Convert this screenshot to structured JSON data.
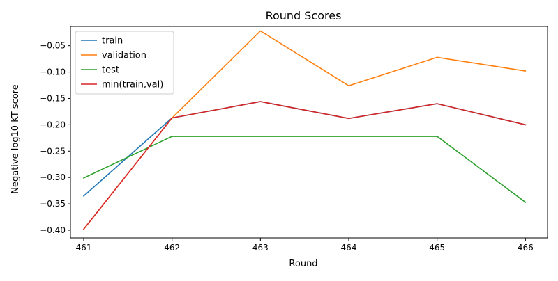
{
  "chart_data": {
    "type": "line",
    "title": "Round Scores",
    "xlabel": "Round",
    "ylabel": "Negative log10 KT score",
    "x": [
      461,
      462,
      463,
      464,
      465,
      466
    ],
    "x_tick_labels": [
      "461",
      "462",
      "463",
      "464",
      "465",
      "466"
    ],
    "y_ticks": [
      -0.4,
      -0.35,
      -0.3,
      -0.25,
      -0.2,
      -0.15,
      -0.1,
      -0.05
    ],
    "y_tick_labels": [
      "−0.40",
      "−0.35",
      "−0.30",
      "−0.25",
      "−0.20",
      "−0.15",
      "−0.10",
      "−0.05"
    ],
    "xlim": [
      460.85,
      466.25
    ],
    "ylim": [
      -0.4145,
      -0.0135
    ],
    "grid": false,
    "legend_position": "upper-left",
    "series": [
      {
        "name": "train",
        "color": "#1f77b4",
        "values": [
          -0.335,
          -0.187,
          -0.156,
          -0.188,
          -0.16,
          -0.2
        ]
      },
      {
        "name": "validation",
        "color": "#ff7f0e",
        "values": [
          -0.398,
          -0.187,
          -0.022,
          -0.126,
          -0.072,
          -0.098
        ]
      },
      {
        "name": "test",
        "color": "#2ca02c",
        "values": [
          -0.301,
          -0.222,
          -0.222,
          -0.222,
          -0.222,
          -0.347
        ]
      },
      {
        "name": "min(train,val)",
        "color": "#d62728",
        "values": [
          -0.398,
          -0.187,
          -0.156,
          -0.188,
          -0.16,
          -0.2
        ]
      }
    ]
  }
}
